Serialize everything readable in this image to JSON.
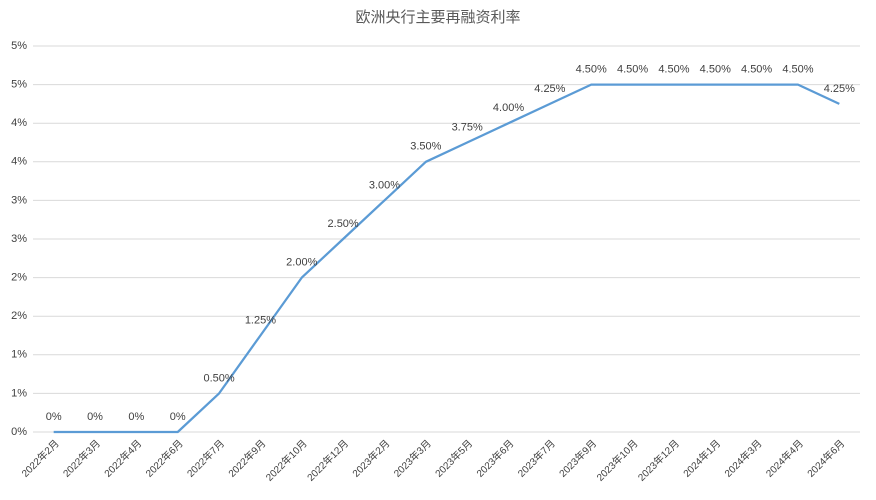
{
  "chart_data": {
    "type": "line",
    "title": "欧洲央行主要再融资利率",
    "categories": [
      "2022年2月",
      "2022年3月",
      "2022年4月",
      "2022年6月",
      "2022年7月",
      "2022年9月",
      "2022年10月",
      "2022年12月",
      "2023年2月",
      "2023年3月",
      "2023年5月",
      "2023年6月",
      "2023年7月",
      "2023年9月",
      "2023年10月",
      "2023年12月",
      "2024年1月",
      "2024年3月",
      "2024年4月",
      "2024年6月"
    ],
    "series": [
      {
        "color": "#5b9bd5",
        "values": [
          0,
          0,
          0,
          0,
          0.5,
          1.25,
          2,
          2.5,
          3,
          3.5,
          3.75,
          4,
          4.25,
          4.5,
          4.5,
          4.5,
          4.5,
          4.5,
          4.5,
          4.25
        ],
        "value_labels": [
          "0%",
          "0%",
          "0%",
          "0%",
          "0.50%",
          "1.25%",
          "2.00%",
          "2.50%",
          "3.00%",
          "3.50%",
          "3.75%",
          "4.00%",
          "4.25%",
          "4.50%",
          "4.50%",
          "4.50%",
          "4.50%",
          "4.50%",
          "4.50%",
          "4.25%"
        ]
      }
    ],
    "ylim": [
      0,
      5
    ],
    "yticks": [
      {
        "value": 0,
        "label": "0%"
      },
      {
        "value": 0.5,
        "label": "1%"
      },
      {
        "value": 1,
        "label": "1%"
      },
      {
        "value": 1.5,
        "label": "2%"
      },
      {
        "value": 2,
        "label": "2%"
      },
      {
        "value": 2.5,
        "label": "3%"
      },
      {
        "value": 3,
        "label": "3%"
      },
      {
        "value": 3.5,
        "label": "4%"
      },
      {
        "value": 4,
        "label": "4%"
      },
      {
        "value": 4.5,
        "label": "5%"
      },
      {
        "value": 5,
        "label": "5%"
      }
    ],
    "grid": true
  }
}
